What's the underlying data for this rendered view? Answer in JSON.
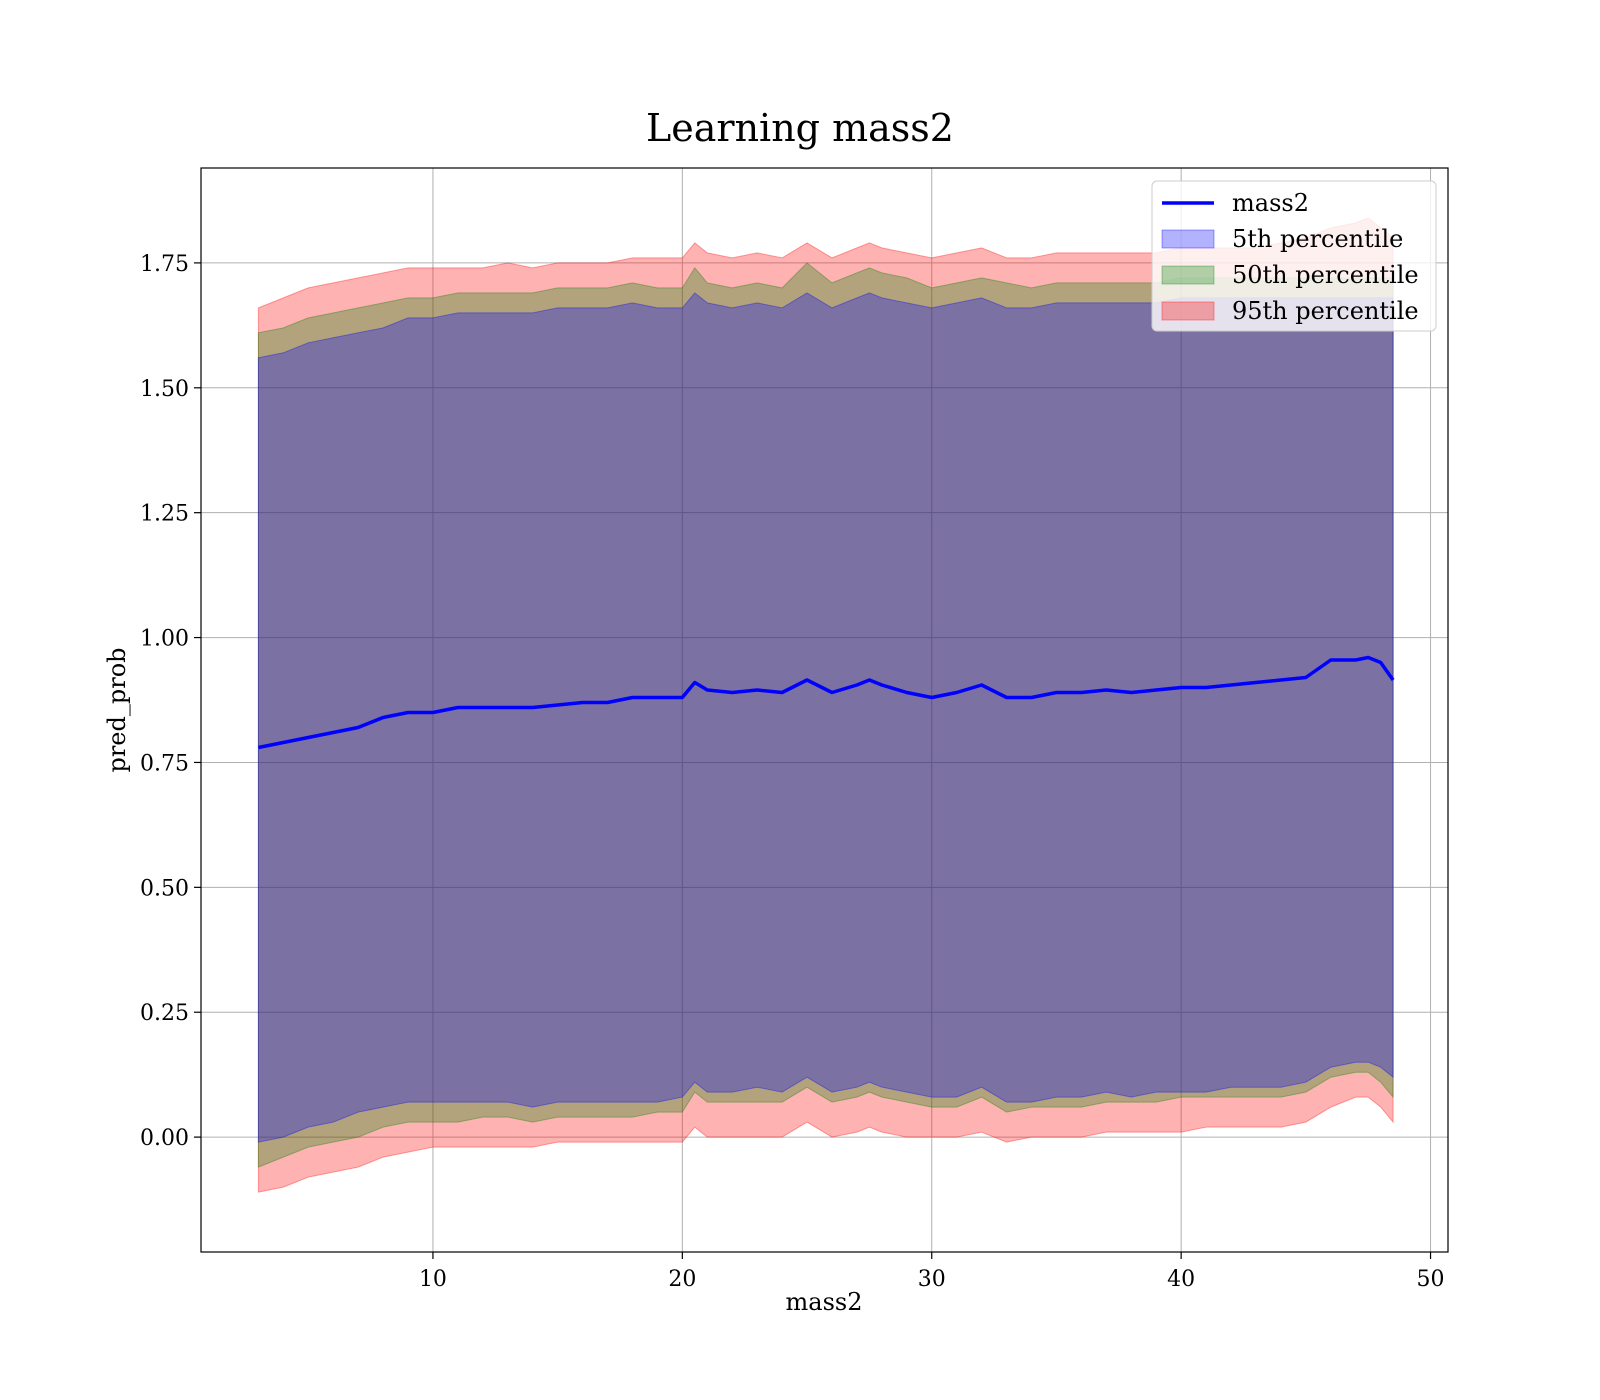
{
  "chart_data": {
    "type": "area",
    "title": "Learning mass2",
    "xlabel": "mass2",
    "ylabel": "pred_prob",
    "xlim": [
      0.7,
      50.7
    ],
    "ylim": [
      -0.23,
      1.94
    ],
    "xticks": [
      10,
      20,
      30,
      40,
      50
    ],
    "yticks": [
      0.0,
      0.25,
      0.5,
      0.75,
      1.0,
      1.25,
      1.5,
      1.75
    ],
    "xtick_labels": [
      "10",
      "20",
      "30",
      "40",
      "50"
    ],
    "ytick_labels": [
      "0.00",
      "0.25",
      "0.50",
      "0.75",
      "1.00",
      "1.25",
      "1.50",
      "1.75"
    ],
    "grid": true,
    "legend_position": "top-right",
    "x": [
      3.0,
      4.0,
      5.0,
      6.0,
      7.0,
      8.0,
      9.0,
      10.0,
      11.0,
      12.0,
      13.0,
      14.0,
      15.0,
      16.0,
      17.0,
      18.0,
      19.0,
      20.0,
      20.5,
      21.0,
      22.0,
      23.0,
      24.0,
      25.0,
      26.0,
      27.0,
      27.5,
      28.0,
      29.0,
      30.0,
      31.0,
      32.0,
      33.0,
      34.0,
      35.0,
      36.0,
      37.0,
      38.0,
      39.0,
      40.0,
      41.0,
      42.0,
      43.0,
      44.0,
      45.0,
      46.0,
      47.0,
      47.5,
      48.0,
      48.5
    ],
    "series": [
      {
        "name": "mass2",
        "kind": "line",
        "color": "#0000ff",
        "values": [
          0.78,
          0.79,
          0.8,
          0.81,
          0.82,
          0.84,
          0.85,
          0.85,
          0.86,
          0.86,
          0.86,
          0.86,
          0.865,
          0.87,
          0.87,
          0.88,
          0.88,
          0.88,
          0.91,
          0.895,
          0.89,
          0.895,
          0.89,
          0.915,
          0.89,
          0.905,
          0.915,
          0.905,
          0.89,
          0.88,
          0.89,
          0.905,
          0.88,
          0.88,
          0.89,
          0.89,
          0.895,
          0.89,
          0.895,
          0.9,
          0.9,
          0.905,
          0.91,
          0.915,
          0.92,
          0.955,
          0.955,
          0.96,
          0.95,
          0.915
        ]
      },
      {
        "name": "5th percentile",
        "kind": "band",
        "color": "#0000ff",
        "lower": [
          -0.01,
          0.0,
          0.02,
          0.03,
          0.05,
          0.06,
          0.07,
          0.07,
          0.07,
          0.07,
          0.07,
          0.06,
          0.07,
          0.07,
          0.07,
          0.07,
          0.07,
          0.08,
          0.11,
          0.09,
          0.09,
          0.1,
          0.09,
          0.12,
          0.09,
          0.1,
          0.11,
          0.1,
          0.09,
          0.08,
          0.08,
          0.1,
          0.07,
          0.07,
          0.08,
          0.08,
          0.09,
          0.08,
          0.09,
          0.09,
          0.09,
          0.1,
          0.1,
          0.1,
          0.11,
          0.14,
          0.15,
          0.15,
          0.14,
          0.12
        ],
        "upper": [
          1.56,
          1.57,
          1.59,
          1.6,
          1.61,
          1.62,
          1.64,
          1.64,
          1.65,
          1.65,
          1.65,
          1.65,
          1.66,
          1.66,
          1.66,
          1.67,
          1.66,
          1.66,
          1.69,
          1.67,
          1.66,
          1.67,
          1.66,
          1.69,
          1.66,
          1.68,
          1.69,
          1.68,
          1.67,
          1.66,
          1.67,
          1.68,
          1.66,
          1.66,
          1.67,
          1.67,
          1.67,
          1.67,
          1.67,
          1.68,
          1.68,
          1.68,
          1.68,
          1.68,
          1.68,
          1.68,
          1.68,
          1.68,
          1.68,
          1.68
        ]
      },
      {
        "name": "50th percentile",
        "kind": "band",
        "color": "#008000",
        "lower": [
          -0.06,
          -0.04,
          -0.02,
          -0.01,
          0.0,
          0.02,
          0.03,
          0.03,
          0.03,
          0.04,
          0.04,
          0.03,
          0.04,
          0.04,
          0.04,
          0.04,
          0.05,
          0.05,
          0.09,
          0.07,
          0.07,
          0.07,
          0.07,
          0.1,
          0.07,
          0.08,
          0.09,
          0.08,
          0.07,
          0.06,
          0.06,
          0.08,
          0.05,
          0.06,
          0.06,
          0.06,
          0.07,
          0.07,
          0.07,
          0.08,
          0.08,
          0.08,
          0.08,
          0.08,
          0.09,
          0.12,
          0.13,
          0.13,
          0.11,
          0.08
        ],
        "upper": [
          1.61,
          1.62,
          1.64,
          1.65,
          1.66,
          1.67,
          1.68,
          1.68,
          1.69,
          1.69,
          1.69,
          1.69,
          1.7,
          1.7,
          1.7,
          1.71,
          1.7,
          1.7,
          1.74,
          1.71,
          1.7,
          1.71,
          1.7,
          1.75,
          1.71,
          1.73,
          1.74,
          1.73,
          1.72,
          1.7,
          1.71,
          1.72,
          1.71,
          1.7,
          1.71,
          1.71,
          1.71,
          1.71,
          1.71,
          1.72,
          1.72,
          1.72,
          1.72,
          1.72,
          1.72,
          1.72,
          1.72,
          1.72,
          1.72,
          1.72
        ]
      },
      {
        "name": "95th percentile",
        "kind": "band",
        "color": "#ff0000",
        "lower": [
          -0.11,
          -0.1,
          -0.08,
          -0.07,
          -0.06,
          -0.04,
          -0.03,
          -0.02,
          -0.02,
          -0.02,
          -0.02,
          -0.02,
          -0.01,
          -0.01,
          -0.01,
          -0.01,
          -0.01,
          -0.01,
          0.02,
          0.0,
          0.0,
          0.0,
          0.0,
          0.03,
          0.0,
          0.01,
          0.02,
          0.01,
          0.0,
          0.0,
          0.0,
          0.01,
          -0.01,
          0.0,
          0.0,
          0.0,
          0.01,
          0.01,
          0.01,
          0.01,
          0.02,
          0.02,
          0.02,
          0.02,
          0.03,
          0.06,
          0.08,
          0.08,
          0.06,
          0.03
        ],
        "upper": [
          1.66,
          1.68,
          1.7,
          1.71,
          1.72,
          1.73,
          1.74,
          1.74,
          1.74,
          1.74,
          1.75,
          1.74,
          1.75,
          1.75,
          1.75,
          1.76,
          1.76,
          1.76,
          1.79,
          1.77,
          1.76,
          1.77,
          1.76,
          1.79,
          1.76,
          1.78,
          1.79,
          1.78,
          1.77,
          1.76,
          1.77,
          1.78,
          1.76,
          1.76,
          1.77,
          1.77,
          1.77,
          1.77,
          1.77,
          1.78,
          1.78,
          1.78,
          1.78,
          1.79,
          1.8,
          1.82,
          1.83,
          1.84,
          1.82,
          1.8
        ]
      }
    ]
  }
}
